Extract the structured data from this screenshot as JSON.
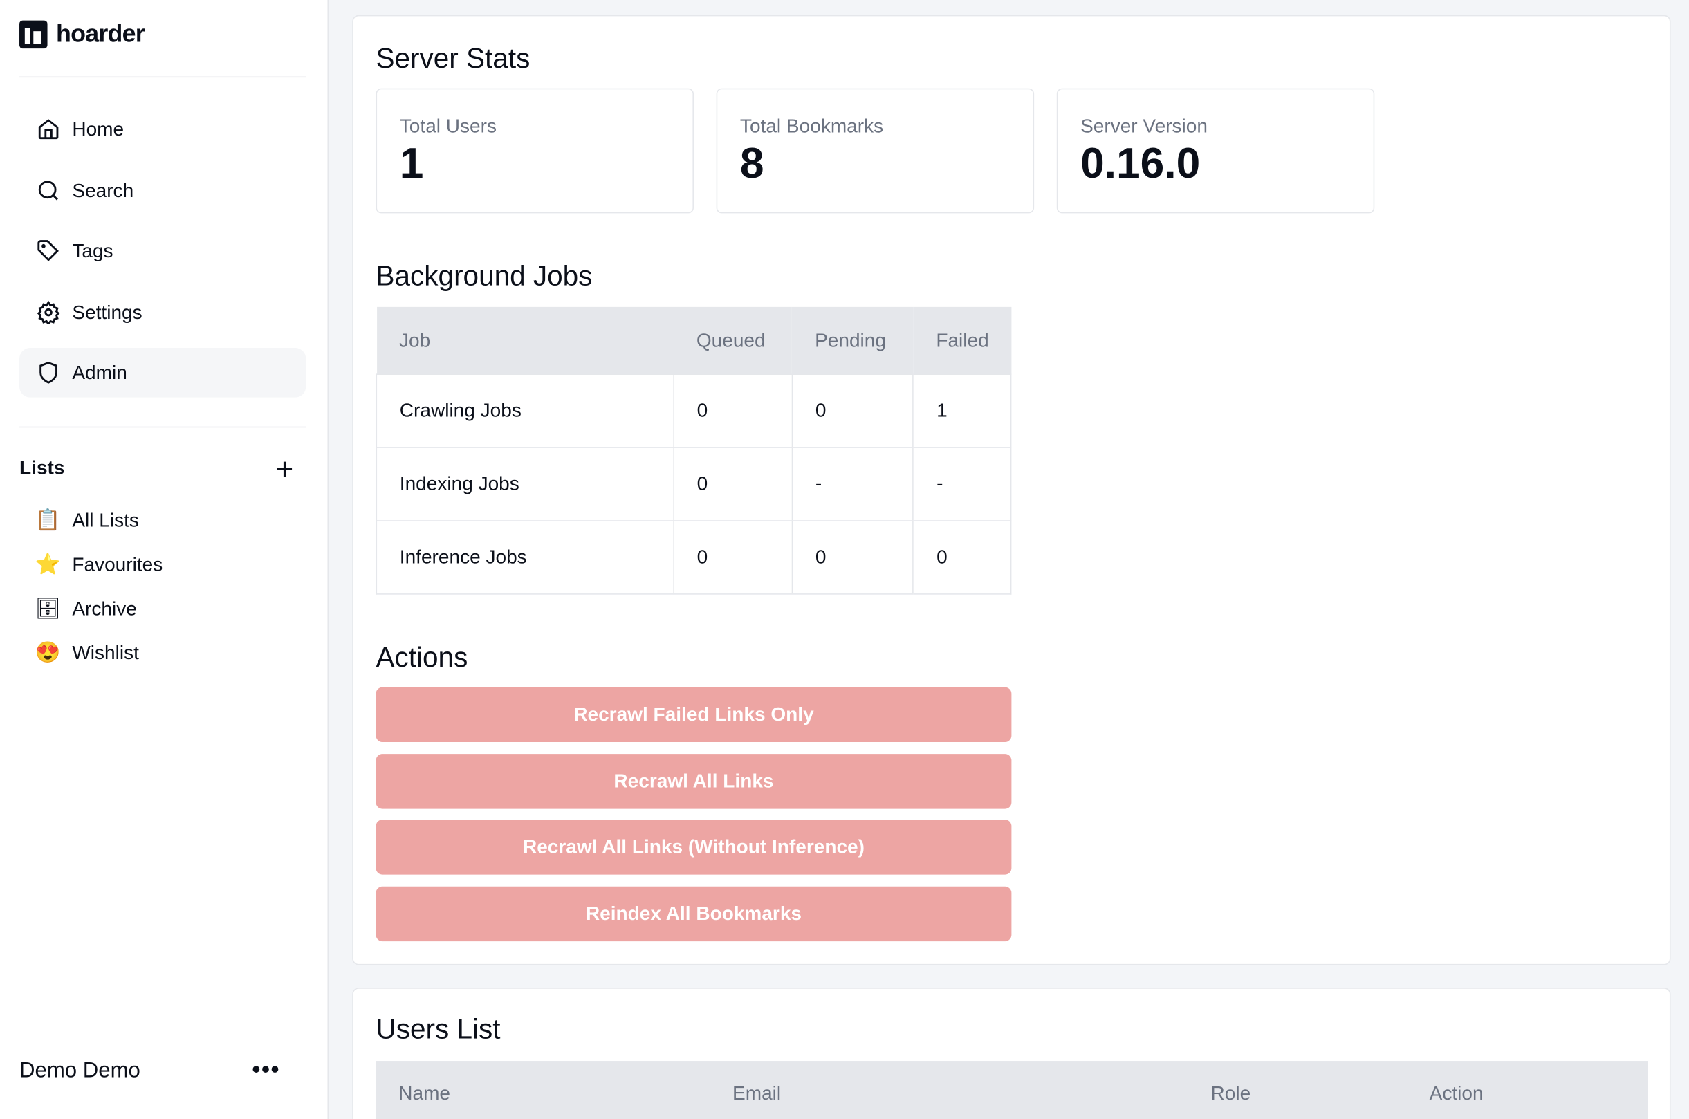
{
  "app": {
    "name": "hoarder"
  },
  "sidebar": {
    "nav": [
      {
        "label": "Home",
        "icon": "home-icon"
      },
      {
        "label": "Search",
        "icon": "search-icon"
      },
      {
        "label": "Tags",
        "icon": "tag-icon"
      },
      {
        "label": "Settings",
        "icon": "gear-icon"
      },
      {
        "label": "Admin",
        "icon": "shield-icon",
        "active": true
      }
    ],
    "lists_heading": "Lists",
    "lists": [
      {
        "label": "All Lists",
        "emoji": "📋"
      },
      {
        "label": "Favourites",
        "emoji": "⭐"
      },
      {
        "label": "Archive",
        "emoji": "🗄"
      },
      {
        "label": "Wishlist",
        "emoji": "😍"
      }
    ],
    "user": "Demo Demo"
  },
  "server_stats": {
    "title": "Server Stats",
    "stats": [
      {
        "label": "Total Users",
        "value": "1"
      },
      {
        "label": "Total Bookmarks",
        "value": "8"
      },
      {
        "label": "Server Version",
        "value": "0.16.0"
      }
    ]
  },
  "jobs": {
    "title": "Background Jobs",
    "headers": [
      "Job",
      "Queued",
      "Pending",
      "Failed"
    ],
    "rows": [
      [
        "Crawling Jobs",
        "0",
        "0",
        "1"
      ],
      [
        "Indexing Jobs",
        "0",
        "-",
        "-"
      ],
      [
        "Inference Jobs",
        "0",
        "0",
        "0"
      ]
    ]
  },
  "actions": {
    "title": "Actions",
    "buttons": [
      "Recrawl Failed Links Only",
      "Recrawl All Links",
      "Recrawl All Links (Without Inference)",
      "Reindex All Bookmarks"
    ],
    "button_color": "#eda5a3"
  },
  "users": {
    "title": "Users List",
    "headers": [
      "Name",
      "Email",
      "Role",
      "Action"
    ]
  }
}
